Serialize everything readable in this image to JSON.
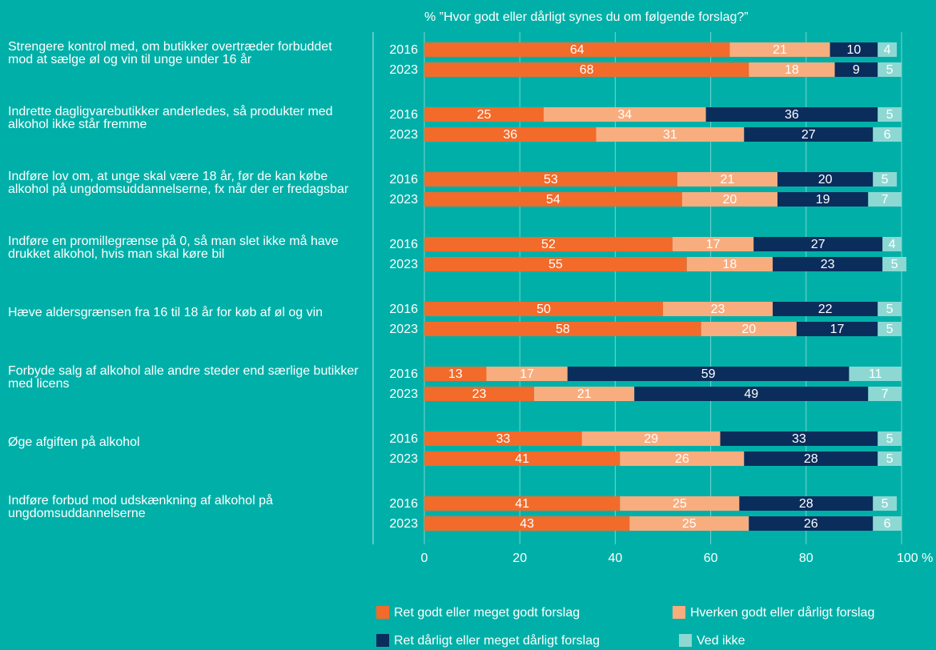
{
  "chart_data": {
    "type": "bar",
    "orientation": "horizontal",
    "stacked": true,
    "title": "% ”Hvor godt eller dårligt synes du om følgende forslag?”",
    "categories": [
      "Strengere kontrol med, om butikker overtræder forbuddet mod at sælge øl og vin til unge under 16 år",
      "Indrette dagligvarebutikker anderledes, så produkter med alkohol ikke står fremme",
      "Indføre lov om, at unge skal være 18 år, før de kan købe alkohol på ungdomsuddannelserne, fx når der er fredagsbar",
      "Indføre en promillegrænse på 0, så man slet ikke må have drukket alkohol, hvis man skal køre bil",
      "Hæve aldersgrænsen fra 16 til 18 år for køb af øl og vin",
      "Forbyde salg af alkohol alle andre steder end særlige butikker med licens",
      "Øge afgiften på alkohol",
      "Indføre forbud mod udskænkning af alkohol på ungdomsuddannelserne"
    ],
    "years": [
      "2016",
      "2023"
    ],
    "series": [
      {
        "name": "Ret godt eller meget godt forslag",
        "color": "#f26b2a",
        "values": [
          [
            64,
            68
          ],
          [
            25,
            36
          ],
          [
            53,
            54
          ],
          [
            52,
            55
          ],
          [
            50,
            58
          ],
          [
            13,
            23
          ],
          [
            33,
            41
          ],
          [
            41,
            43
          ]
        ]
      },
      {
        "name": "Hverken godt eller dårligt forslag",
        "color": "#f8ad7f",
        "values": [
          [
            21,
            18
          ],
          [
            34,
            31
          ],
          [
            21,
            20
          ],
          [
            17,
            18
          ],
          [
            23,
            20
          ],
          [
            17,
            21
          ],
          [
            29,
            26
          ],
          [
            25,
            25
          ]
        ]
      },
      {
        "name": "Ret dårligt eller meget dårligt forslag",
        "color": "#0b2d5c",
        "values": [
          [
            10,
            9
          ],
          [
            36,
            27
          ],
          [
            20,
            19
          ],
          [
            27,
            23
          ],
          [
            22,
            17
          ],
          [
            59,
            49
          ],
          [
            33,
            28
          ],
          [
            28,
            26
          ]
        ]
      },
      {
        "name": "Ved ikke",
        "color": "#8ed8d3",
        "values": [
          [
            4,
            5
          ],
          [
            5,
            6
          ],
          [
            5,
            7
          ],
          [
            4,
            5
          ],
          [
            5,
            5
          ],
          [
            11,
            7
          ],
          [
            5,
            5
          ],
          [
            5,
            6
          ]
        ]
      }
    ],
    "xlim": [
      0,
      100
    ],
    "xticks": [
      0,
      20,
      40,
      60,
      80,
      {
        "value": 100,
        "label": "100 %"
      }
    ],
    "grid": true
  }
}
